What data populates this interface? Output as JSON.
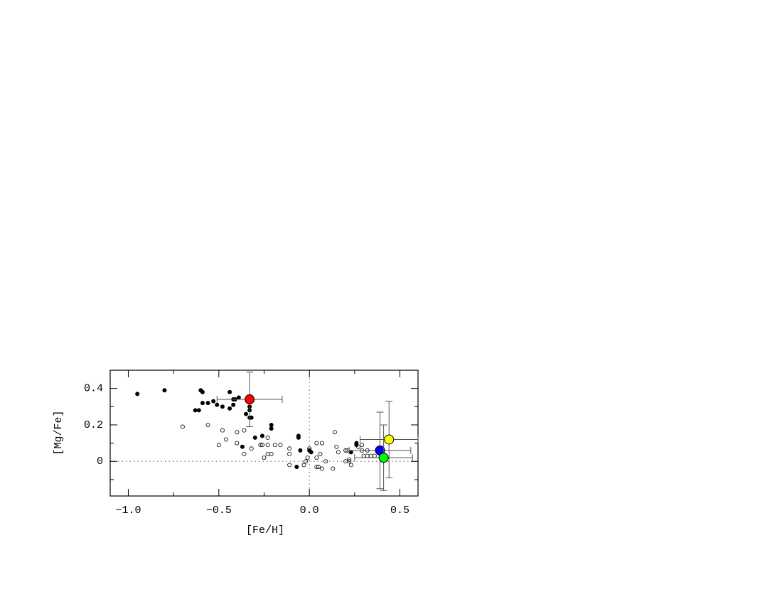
{
  "chart_data": {
    "type": "scatter",
    "xlabel": "[Fe/H]",
    "ylabel": "[Mg/Fe]",
    "xlim": [
      -1.1,
      0.6
    ],
    "ylim": [
      -0.19,
      0.5
    ],
    "xticks": [
      {
        "value": -1.0,
        "label": "−1.0"
      },
      {
        "value": -0.5,
        "label": "−0.5"
      },
      {
        "value": 0.0,
        "label": "0.0"
      },
      {
        "value": 0.5,
        "label": "0.5"
      }
    ],
    "xminorticks": [
      -0.75,
      -0.25,
      0.25
    ],
    "yticks": [
      0,
      0.2,
      0.4
    ],
    "yminorticks": [
      -0.1,
      0.1,
      0.3
    ],
    "reflines": {
      "x": 0,
      "y": 0
    },
    "series": [
      {
        "marker": "filled",
        "color": "#000000",
        "x": [
          -0.95,
          -0.8,
          -0.6,
          -0.59,
          -0.63,
          -0.61,
          -0.59,
          -0.56,
          -0.53,
          -0.51,
          -0.48,
          -0.44,
          -0.44,
          -0.42,
          -0.42,
          -0.41,
          -0.39,
          -0.35,
          -0.33,
          -0.32,
          -0.33,
          -0.33,
          -0.21,
          -0.21,
          -0.3,
          -0.26,
          -0.37,
          -0.06,
          -0.06,
          -0.05,
          0.0,
          0.01,
          -0.07,
          0.26,
          0.26,
          0.23
        ],
        "values": [
          0.37,
          0.39,
          0.39,
          0.38,
          0.28,
          0.28,
          0.32,
          0.32,
          0.33,
          0.31,
          0.3,
          0.38,
          0.29,
          0.34,
          0.31,
          0.34,
          0.35,
          0.26,
          0.24,
          0.24,
          0.3,
          0.28,
          0.2,
          0.18,
          0.13,
          0.14,
          0.08,
          0.13,
          0.14,
          0.06,
          0.06,
          0.05,
          -0.03,
          0.1,
          0.09,
          0.05
        ]
      },
      {
        "marker": "open",
        "color": "#000000",
        "x": [
          -0.7,
          -0.56,
          -0.48,
          -0.46,
          -0.5,
          -0.4,
          -0.36,
          -0.4,
          -0.36,
          -0.32,
          -0.27,
          -0.26,
          -0.23,
          -0.23,
          -0.25,
          -0.23,
          -0.21,
          -0.19,
          -0.16,
          -0.11,
          -0.11,
          -0.11,
          -0.03,
          -0.02,
          -0.01,
          0.0,
          0.04,
          0.04,
          0.04,
          0.05,
          0.06,
          0.07,
          0.07,
          0.09,
          0.13,
          0.14,
          0.15,
          0.16,
          0.2,
          0.21,
          0.2,
          0.22,
          0.23,
          0.22,
          0.27,
          0.29,
          0.29,
          0.3,
          0.32,
          0.32,
          0.34,
          0.36
        ],
        "values": [
          0.19,
          0.2,
          0.17,
          0.12,
          0.09,
          0.16,
          0.17,
          0.1,
          0.04,
          0.07,
          0.09,
          0.09,
          0.13,
          0.09,
          0.02,
          0.04,
          0.04,
          0.09,
          0.09,
          0.07,
          0.04,
          -0.02,
          -0.02,
          0.0,
          0.02,
          0.07,
          0.1,
          0.02,
          -0.03,
          -0.03,
          0.04,
          0.1,
          -0.04,
          0.0,
          -0.04,
          0.16,
          0.08,
          0.05,
          0.06,
          0.06,
          0.0,
          0.01,
          -0.02,
          0.0,
          0.08,
          0.09,
          0.06,
          0.03,
          0.03,
          0.06,
          0.03,
          0.03
        ]
      },
      {
        "marker": "large",
        "color": "#ff0000",
        "x": [
          -0.33
        ],
        "values": [
          0.34
        ],
        "xerr": [
          0.18
        ],
        "yerr": [
          0.15
        ]
      },
      {
        "marker": "large",
        "color": "#ffff00",
        "x": [
          0.44
        ],
        "values": [
          0.12
        ],
        "xerr": [
          0.16
        ],
        "yerr": [
          0.21
        ]
      },
      {
        "marker": "large",
        "color": "#0000ff",
        "x": [
          0.39
        ],
        "values": [
          0.06
        ],
        "xerr": [
          0.17
        ],
        "yerr": [
          0.21
        ]
      },
      {
        "marker": "large",
        "color": "#00ff00",
        "x": [
          0.41
        ],
        "values": [
          0.02
        ],
        "xerr": [
          0.16
        ],
        "yerr": [
          0.18
        ]
      }
    ]
  }
}
